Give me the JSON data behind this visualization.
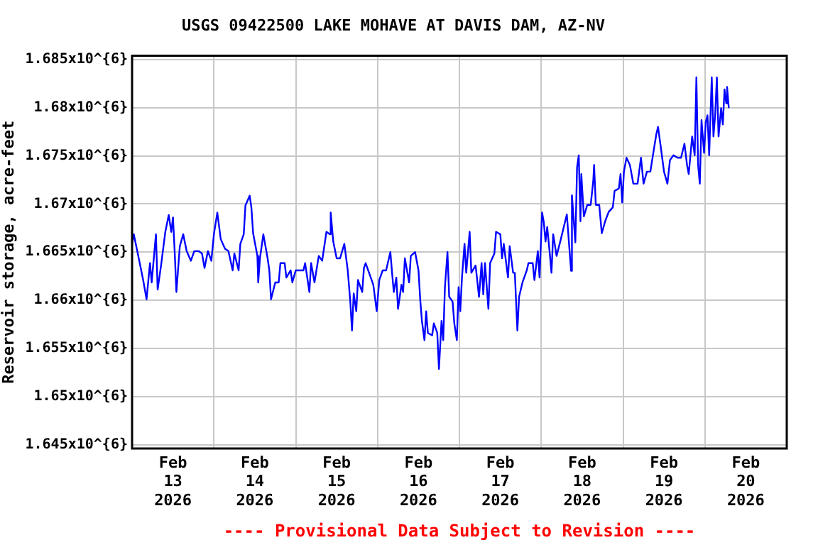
{
  "chart_data": {
    "type": "line",
    "title": "USGS 09422500 LAKE MOHAVE AT DAVIS DAM, AZ-NV",
    "ylabel": "Reservoir storage, acre-feet",
    "annotations": [
      "---- Provisional Data Subject to Revision ----"
    ],
    "color": "#0000ff",
    "grid": true,
    "legend": false,
    "marker": "none",
    "line_style": "solid",
    "x": [
      "2026-02-13T00:00",
      "2026-02-13T00:30",
      "2026-02-13T02:15",
      "2026-02-13T03:15",
      "2026-02-13T04:15",
      "2026-02-13T05:15",
      "2026-02-13T05:45",
      "2026-02-13T07:00",
      "2026-02-13T07:30",
      "2026-02-13T08:30",
      "2026-02-13T09:45",
      "2026-02-13T10:45",
      "2026-02-13T11:30",
      "2026-02-13T12:00",
      "2026-02-13T12:30",
      "2026-02-13T13:00",
      "2026-02-13T14:00",
      "2026-02-13T15:00",
      "2026-02-13T16:00",
      "2026-02-13T17:15",
      "2026-02-13T18:15",
      "2026-02-13T19:30",
      "2026-02-13T20:30",
      "2026-02-13T21:15",
      "2026-02-13T22:15",
      "2026-02-13T23:15",
      "2026-02-14T00:00",
      "2026-02-14T01:00",
      "2026-02-14T02:00",
      "2026-02-14T03:15",
      "2026-02-14T04:15",
      "2026-02-14T05:30",
      "2026-02-14T06:00",
      "2026-02-14T07:15",
      "2026-02-14T07:45",
      "2026-02-14T08:45",
      "2026-02-14T09:15",
      "2026-02-14T10:30",
      "2026-02-14T11:00",
      "2026-02-14T11:30",
      "2026-02-14T12:45",
      "2026-02-14T13:00",
      "2026-02-14T13:30",
      "2026-02-14T14:30",
      "2026-02-14T15:45",
      "2026-02-14T16:15",
      "2026-02-14T16:45",
      "2026-02-14T18:00",
      "2026-02-14T19:00",
      "2026-02-14T19:30",
      "2026-02-14T20:45",
      "2026-02-14T21:15",
      "2026-02-14T22:30",
      "2026-02-14T23:00",
      "2026-02-15T00:00",
      "2026-02-15T01:15",
      "2026-02-15T02:15",
      "2026-02-15T02:45",
      "2026-02-15T04:00",
      "2026-02-15T04:30",
      "2026-02-15T05:30",
      "2026-02-15T06:45",
      "2026-02-15T07:45",
      "2026-02-15T09:00",
      "2026-02-15T10:00",
      "2026-02-15T10:15",
      "2026-02-15T11:00",
      "2026-02-15T12:00",
      "2026-02-15T13:00",
      "2026-02-15T14:15",
      "2026-02-15T15:15",
      "2026-02-15T16:00",
      "2026-02-15T16:30",
      "2026-02-15T17:00",
      "2026-02-15T17:45",
      "2026-02-15T18:15",
      "2026-02-15T19:30",
      "2026-02-15T20:00",
      "2026-02-15T20:30",
      "2026-02-15T21:30",
      "2026-02-15T22:45",
      "2026-02-15T23:45",
      "2026-02-16T00:30",
      "2026-02-16T01:30",
      "2026-02-16T02:30",
      "2026-02-16T03:45",
      "2026-02-16T04:15",
      "2026-02-16T04:45",
      "2026-02-16T05:30",
      "2026-02-16T06:00",
      "2026-02-16T07:00",
      "2026-02-16T07:30",
      "2026-02-16T08:00",
      "2026-02-16T09:15",
      "2026-02-16T09:45",
      "2026-02-16T11:00",
      "2026-02-16T12:00",
      "2026-02-16T12:30",
      "2026-02-16T13:00",
      "2026-02-16T13:45",
      "2026-02-16T14:15",
      "2026-02-16T14:45",
      "2026-02-16T16:00",
      "2026-02-16T16:30",
      "2026-02-16T17:30",
      "2026-02-16T18:00",
      "2026-02-16T18:45",
      "2026-02-16T19:15",
      "2026-02-16T19:45",
      "2026-02-16T20:30",
      "2026-02-16T21:00",
      "2026-02-16T22:00",
      "2026-02-16T22:30",
      "2026-02-16T23:15",
      "2026-02-16T23:45",
      "2026-02-17T00:15",
      "2026-02-17T00:45",
      "2026-02-17T01:30",
      "2026-02-17T02:00",
      "2026-02-17T03:00",
      "2026-02-17T03:30",
      "2026-02-17T04:45",
      "2026-02-17T05:45",
      "2026-02-17T06:30",
      "2026-02-17T07:00",
      "2026-02-17T07:30",
      "2026-02-17T08:30",
      "2026-02-17T09:00",
      "2026-02-17T10:15",
      "2026-02-17T10:45",
      "2026-02-17T12:00",
      "2026-02-17T12:30",
      "2026-02-17T13:00",
      "2026-02-17T14:15",
      "2026-02-17T14:45",
      "2026-02-17T15:45",
      "2026-02-17T16:15",
      "2026-02-17T17:00",
      "2026-02-17T17:30",
      "2026-02-17T18:30",
      "2026-02-17T19:45",
      "2026-02-17T20:15",
      "2026-02-17T21:30",
      "2026-02-17T22:00",
      "2026-02-17T23:00",
      "2026-02-17T23:30",
      "2026-02-18T00:15",
      "2026-02-18T00:45",
      "2026-02-18T01:15",
      "2026-02-18T01:45",
      "2026-02-18T02:30",
      "2026-02-18T03:00",
      "2026-02-18T03:30",
      "2026-02-18T04:30",
      "2026-02-18T05:45",
      "2026-02-18T07:30",
      "2026-02-18T08:45",
      "2026-02-18T09:00",
      "2026-02-18T10:00",
      "2026-02-18T10:30",
      "2026-02-18T11:00",
      "2026-02-18T11:30",
      "2026-02-18T11:45",
      "2026-02-18T12:30",
      "2026-02-18T13:30",
      "2026-02-18T14:30",
      "2026-02-18T15:15",
      "2026-02-18T15:30",
      "2026-02-18T16:00",
      "2026-02-18T17:00",
      "2026-02-18T17:45",
      "2026-02-18T18:45",
      "2026-02-18T19:45",
      "2026-02-18T21:00",
      "2026-02-18T21:30",
      "2026-02-18T22:45",
      "2026-02-18T23:15",
      "2026-02-18T23:45",
      "2026-02-19T00:15",
      "2026-02-19T01:00",
      "2026-02-19T02:00",
      "2026-02-19T03:00",
      "2026-02-19T04:15",
      "2026-02-19T05:15",
      "2026-02-19T06:00",
      "2026-02-19T07:00",
      "2026-02-19T08:00",
      "2026-02-19T08:45",
      "2026-02-19T09:45",
      "2026-02-19T10:15",
      "2026-02-19T11:00",
      "2026-02-19T12:00",
      "2026-02-19T13:00",
      "2026-02-19T13:45",
      "2026-02-19T14:45",
      "2026-02-19T16:00",
      "2026-02-19T17:00",
      "2026-02-19T18:00",
      "2026-02-19T18:45",
      "2026-02-19T19:15",
      "2026-02-19T20:15",
      "2026-02-19T21:00",
      "2026-02-19T21:30",
      "2026-02-19T22:00",
      "2026-02-19T22:30",
      "2026-02-19T23:00",
      "2026-02-19T23:45",
      "2026-02-20T00:15",
      "2026-02-20T00:45",
      "2026-02-20T01:15",
      "2026-02-20T02:00",
      "2026-02-20T02:30",
      "2026-02-20T03:00",
      "2026-02-20T03:30",
      "2026-02-20T04:00",
      "2026-02-20T04:45",
      "2026-02-20T05:15",
      "2026-02-20T05:45",
      "2026-02-20T06:15",
      "2026-02-20T06:30",
      "2026-02-20T07:00"
    ],
    "values": [
      1665850,
      1666850,
      1663850,
      1662100,
      1660100,
      1663850,
      1661850,
      1666850,
      1661100,
      1663600,
      1667100,
      1668850,
      1667100,
      1668600,
      1665000,
      1660850,
      1665600,
      1666850,
      1665100,
      1664100,
      1665100,
      1665100,
      1664850,
      1663350,
      1665100,
      1664100,
      1666850,
      1669100,
      1666350,
      1665350,
      1665100,
      1663100,
      1664850,
      1663100,
      1665850,
      1666850,
      1669850,
      1670850,
      1669600,
      1666950,
      1664600,
      1661850,
      1664350,
      1666850,
      1664350,
      1663100,
      1660100,
      1661850,
      1661850,
      1663850,
      1663850,
      1662350,
      1663100,
      1661850,
      1663100,
      1663100,
      1663100,
      1663850,
      1660850,
      1663850,
      1661850,
      1664600,
      1664100,
      1667100,
      1666850,
      1669100,
      1666100,
      1664350,
      1664350,
      1665850,
      1663100,
      1659850,
      1656850,
      1660700,
      1658850,
      1662100,
      1660850,
      1663350,
      1663850,
      1662850,
      1661600,
      1658850,
      1662100,
      1663100,
      1663100,
      1665000,
      1662850,
      1660850,
      1662350,
      1659100,
      1661600,
      1660850,
      1664350,
      1661850,
      1664600,
      1665000,
      1663100,
      1660100,
      1657850,
      1655850,
      1658850,
      1656600,
      1656350,
      1657600,
      1656600,
      1652850,
      1657850,
      1655850,
      1661350,
      1665000,
      1660350,
      1659850,
      1657600,
      1655850,
      1661350,
      1658850,
      1662350,
      1665850,
      1662850,
      1667100,
      1662850,
      1663600,
      1660350,
      1663850,
      1660600,
      1663850,
      1659100,
      1663850,
      1664850,
      1667100,
      1666850,
      1664350,
      1665850,
      1662350,
      1665600,
      1662850,
      1662850,
      1656850,
      1660350,
      1661850,
      1663100,
      1663850,
      1663850,
      1662100,
      1665100,
      1662350,
      1669100,
      1668100,
      1666100,
      1667600,
      1664850,
      1662850,
      1666850,
      1664600,
      1666350,
      1668900,
      1663050,
      1670900,
      1666000,
      1673800,
      1675050,
      1668200,
      1673100,
      1668700,
      1669900,
      1669900,
      1672350,
      1674050,
      1669900,
      1669900,
      1666950,
      1668200,
      1669150,
      1669650,
      1671350,
      1671600,
      1673100,
      1670150,
      1673350,
      1674800,
      1674050,
      1672100,
      1672100,
      1674800,
      1672100,
      1673350,
      1673350,
      1675050,
      1677250,
      1678000,
      1676050,
      1673350,
      1672100,
      1674550,
      1675050,
      1674800,
      1674800,
      1676250,
      1674050,
      1673100,
      1677000,
      1675050,
      1683150,
      1674050,
      1672100,
      1678700,
      1675300,
      1678500,
      1679200,
      1675050,
      1683150,
      1677000,
      1679200,
      1683150,
      1677000,
      1679950,
      1678250,
      1681900,
      1680450,
      1682150,
      1679950
    ],
    "xlim": [
      "2026-02-13T00:00",
      "2026-02-21T00:00"
    ],
    "xticks": [
      {
        "value": "2026-02-13T12:00",
        "label": "Feb\n13\n2026"
      },
      {
        "value": "2026-02-14T00:00",
        "label": null
      },
      {
        "value": "2026-02-14T12:00",
        "label": "Feb\n14\n2026"
      },
      {
        "value": "2026-02-15T00:00",
        "label": null
      },
      {
        "value": "2026-02-15T12:00",
        "label": "Feb\n15\n2026"
      },
      {
        "value": "2026-02-16T00:00",
        "label": null
      },
      {
        "value": "2026-02-16T12:00",
        "label": "Feb\n16\n2026"
      },
      {
        "value": "2026-02-17T00:00",
        "label": null
      },
      {
        "value": "2026-02-17T12:00",
        "label": "Feb\n17\n2026"
      },
      {
        "value": "2026-02-18T00:00",
        "label": null
      },
      {
        "value": "2026-02-18T12:00",
        "label": "Feb\n18\n2026"
      },
      {
        "value": "2026-02-19T00:00",
        "label": null
      },
      {
        "value": "2026-02-19T12:00",
        "label": "Feb\n19\n2026"
      },
      {
        "value": "2026-02-20T00:00",
        "label": null
      },
      {
        "value": "2026-02-20T12:00",
        "label": "Feb\n20\n2026"
      }
    ],
    "ylim": [
      1644600,
      1685400
    ],
    "yticks": [
      {
        "value": 1645000,
        "label": "1.645x10^{6}"
      },
      {
        "value": 1650000,
        "label": "1.65x10^{6}"
      },
      {
        "value": 1655000,
        "label": "1.655x10^{6}"
      },
      {
        "value": 1660000,
        "label": "1.66x10^{6}"
      },
      {
        "value": 1665000,
        "label": "1.665x10^{6}"
      },
      {
        "value": 1670000,
        "label": "1.67x10^{6}"
      },
      {
        "value": 1675000,
        "label": "1.675x10^{6}"
      },
      {
        "value": 1680000,
        "label": "1.68x10^{6}"
      },
      {
        "value": 1685000,
        "label": "1.685x10^{6}"
      }
    ]
  }
}
